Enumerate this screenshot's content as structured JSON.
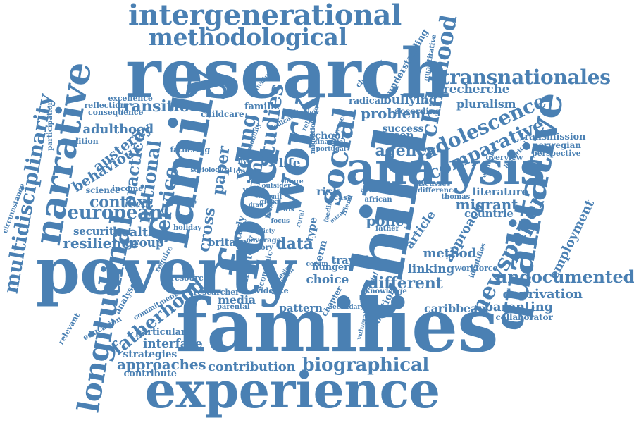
{
  "colors": {
    "word": "#4a80b3",
    "background": "#ffffff"
  },
  "words": [
    "intergenerational",
    "methodological",
    "research",
    "family",
    "families",
    "experience",
    "poverty",
    "child",
    "food",
    "work",
    "social",
    "analysis",
    "qualitative",
    "narrative",
    "multidisciplinarity",
    "longitudinal",
    "transnationales",
    "childhood",
    "adolescence",
    "comparative",
    "newspaper",
    "undocumented",
    "deprivation",
    "parenting",
    "collaborator",
    "employment",
    "caribbean",
    "biographical",
    "contribution",
    "approaches",
    "fatherhood",
    "interface",
    "particular",
    "strategies",
    "contribute",
    "european",
    "context",
    "security",
    "resilience",
    "health",
    "group",
    "service",
    "national",
    "practice",
    "behaviour",
    "austerity",
    "adulthood",
    "transition",
    "reflection",
    "excellence",
    "studies",
    "young",
    "paper",
    "time",
    "cross",
    "agency",
    "success",
    "problem",
    "radical",
    "bullying",
    "recherche",
    "pluralism",
    "transmission",
    "norwegian",
    "perspective",
    "overview",
    "literature",
    "migrant",
    "countrie",
    "approach",
    "policy",
    "article",
    "method",
    "linking",
    "workforce",
    "different",
    "choice",
    "data",
    "media",
    "travail",
    "hunger",
    "pattern",
    "chapter",
    "secondary",
    "solution",
    "vulnerable",
    "knowledge",
    "risk",
    "type",
    "life",
    "future",
    "case",
    "school",
    "person",
    "according",
    "understanding",
    "quantitative",
    "changing",
    "addresses",
    "migration",
    "interview",
    "financial",
    "portugal",
    "famille",
    "childcare",
    "mobility",
    "individual",
    "consequence",
    "participation",
    "condition",
    "fathering",
    "income",
    "science",
    "strategy",
    "holiday",
    "memory",
    "require",
    "resource",
    "analyse",
    "relevant",
    "education",
    "commitment",
    "researcher",
    "evidence",
    "parental",
    "economic",
    "exclusion",
    "coverage",
    "story",
    "britain",
    "study",
    "way",
    "live",
    "london",
    "term",
    "thomas",
    "identifies",
    "difference",
    "discusses",
    "available",
    "african",
    "father",
    "example",
    "historical",
    "circumstance",
    "sociological",
    "relation",
    "dedicated",
    "outsider",
    "global",
    "lewis",
    "coram",
    "friend",
    "feeding",
    "mixed",
    "eating",
    "draw",
    "level",
    "focus",
    "unit",
    "hard",
    "rural",
    "variety",
    "design",
    "material",
    "discover"
  ]
}
